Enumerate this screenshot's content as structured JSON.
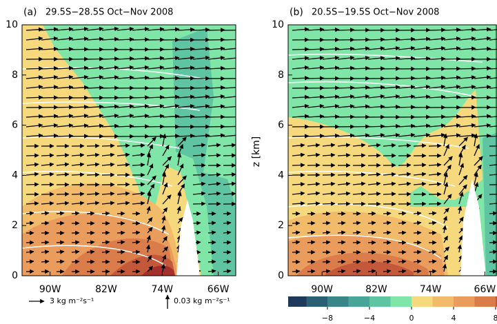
{
  "chart_data": [
    {
      "type": "contour",
      "label": "(a)",
      "title": "29.5S−28.5S Oct−Nov 2008",
      "xlim": [
        -94,
        -63.5
      ],
      "ylim": [
        0,
        10
      ],
      "xticks": [
        {
          "value": -90,
          "label": "90W"
        },
        {
          "value": -82,
          "label": "82W"
        },
        {
          "value": -74,
          "label": "74W"
        },
        {
          "value": -66,
          "label": "66W"
        }
      ],
      "yticks": [
        0,
        2,
        4,
        6,
        8,
        10
      ]
    },
    {
      "type": "contour",
      "label": "(b)",
      "title": "20.5S−19.5S Oct−Nov 2008",
      "ylabel": "z [km]",
      "xlim": [
        -95,
        -63.5
      ],
      "ylim": [
        0,
        10
      ],
      "xticks": [
        {
          "value": -90,
          "label": "90W"
        },
        {
          "value": -82,
          "label": "82W"
        },
        {
          "value": -74,
          "label": "74W"
        },
        {
          "value": -66,
          "label": "66W"
        }
      ],
      "yticks": [
        0,
        2,
        4,
        6,
        8,
        10
      ]
    }
  ],
  "colorbar": {
    "bins": [
      -12,
      -10,
      -8,
      -6,
      -4,
      -2,
      0,
      2,
      4,
      6,
      8,
      10,
      12
    ],
    "colors": [
      "#1d3a5a",
      "#2b5f73",
      "#3a8588",
      "#49a597",
      "#5ec4a2",
      "#80e6a8",
      "#f6d97c",
      "#f1bb6a",
      "#e99c5c",
      "#db7c4b",
      "#c4583b",
      "#a3302a"
    ],
    "ticks": [
      {
        "value": -8,
        "label": "−8"
      },
      {
        "value": -4,
        "label": "−4"
      },
      0,
      4,
      8
    ]
  },
  "vector_key": {
    "horizontal": "3 kg m⁻²s⁻¹",
    "vertical": "0.03 kg m⁻²s⁻¹"
  }
}
